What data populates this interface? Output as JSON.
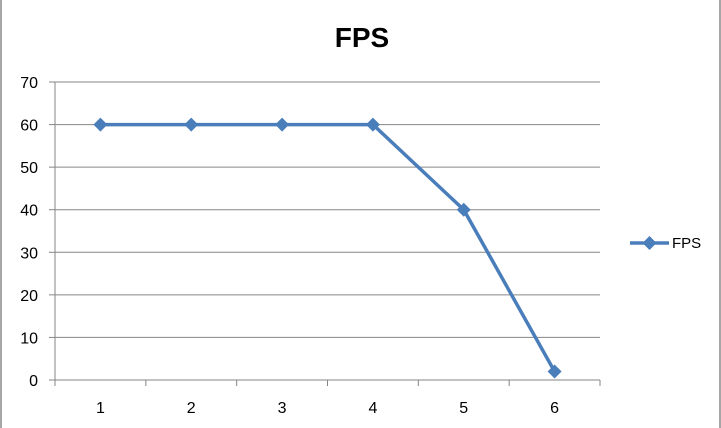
{
  "chart_data": {
    "type": "line",
    "title": "FPS",
    "xlabel": "",
    "ylabel": "",
    "categories": [
      "1",
      "2",
      "3",
      "4",
      "5",
      "6"
    ],
    "series": [
      {
        "name": "FPS",
        "values": [
          60,
          60,
          60,
          60,
          40,
          2
        ],
        "color": "#4a7ebb"
      }
    ],
    "ylim": [
      0,
      70
    ],
    "yticks": [
      0,
      10,
      20,
      30,
      40,
      50,
      60,
      70
    ],
    "grid": true,
    "legend": "right",
    "marker": "diamond"
  }
}
